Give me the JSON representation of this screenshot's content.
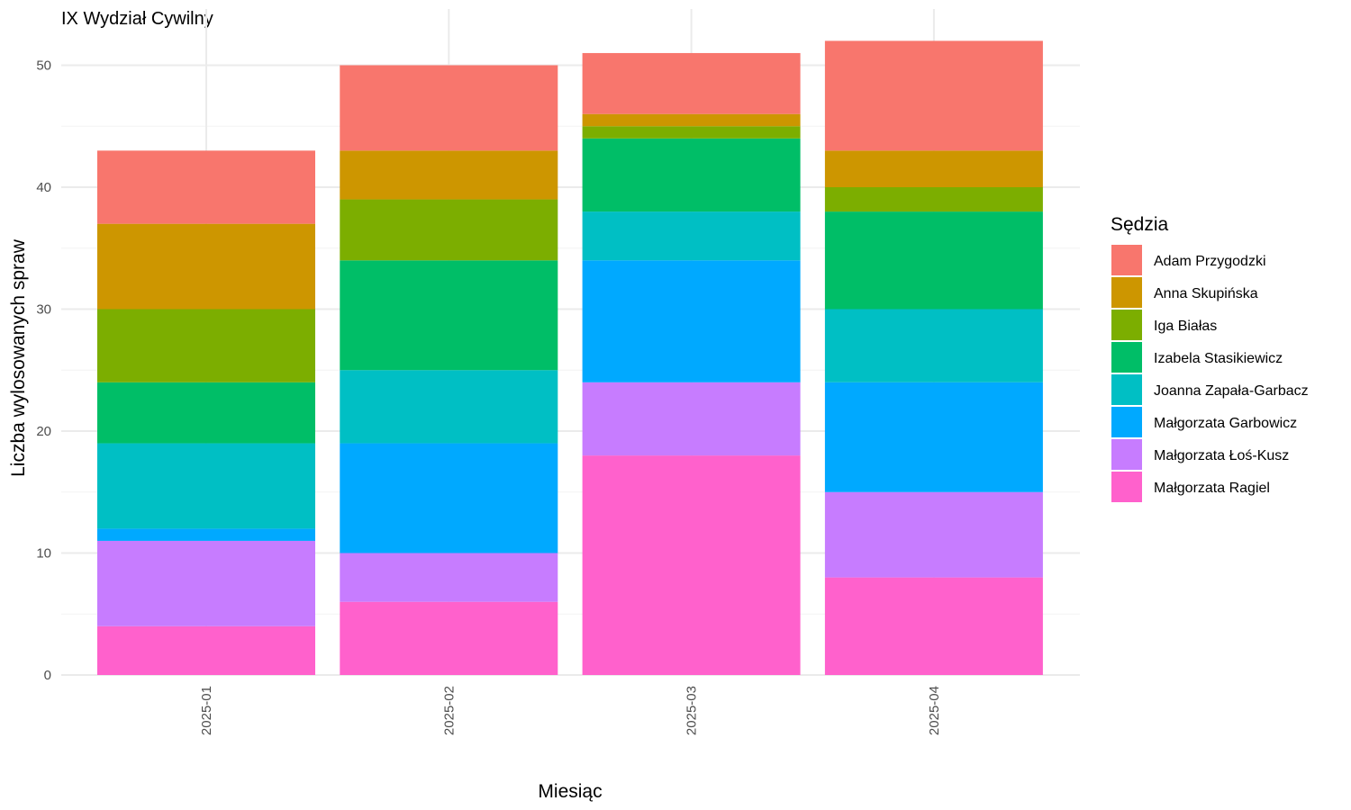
{
  "chart_data": {
    "type": "bar",
    "stacked": true,
    "title": "IX Wydział Cywilny",
    "xlabel": "Miesiąc",
    "ylabel": "Liczba wylosowanych spraw",
    "categories": [
      "2025-01",
      "2025-02",
      "2025-03",
      "2025-04"
    ],
    "ylim": [
      0,
      52
    ],
    "yticks": [
      0,
      10,
      20,
      30,
      40,
      50
    ],
    "grid": true,
    "legend": {
      "title": "Sędzia",
      "position": "right"
    },
    "series": [
      {
        "name": "Adam Przygodzki",
        "color": "#F8766D",
        "values": [
          6,
          7,
          5,
          9
        ]
      },
      {
        "name": "Anna Skupińska",
        "color": "#CD9600",
        "values": [
          7,
          4,
          1,
          3
        ]
      },
      {
        "name": "Iga Białas",
        "color": "#7CAE00",
        "values": [
          6,
          5,
          1,
          2
        ]
      },
      {
        "name": "Izabela Stasikiewicz",
        "color": "#00BE67",
        "values": [
          5,
          9,
          6,
          8
        ]
      },
      {
        "name": "Joanna Zapała-Garbacz",
        "color": "#00BFC4",
        "values": [
          7,
          6,
          4,
          6
        ]
      },
      {
        "name": "Małgorzata Garbowicz",
        "color": "#00A9FF",
        "values": [
          1,
          9,
          10,
          9
        ]
      },
      {
        "name": "Małgorzata Łoś-Kusz",
        "color": "#C77CFF",
        "values": [
          7,
          4,
          6,
          7
        ]
      },
      {
        "name": "Małgorzata Ragiel",
        "color": "#FF61CC",
        "values": [
          4,
          6,
          18,
          8
        ]
      }
    ]
  }
}
